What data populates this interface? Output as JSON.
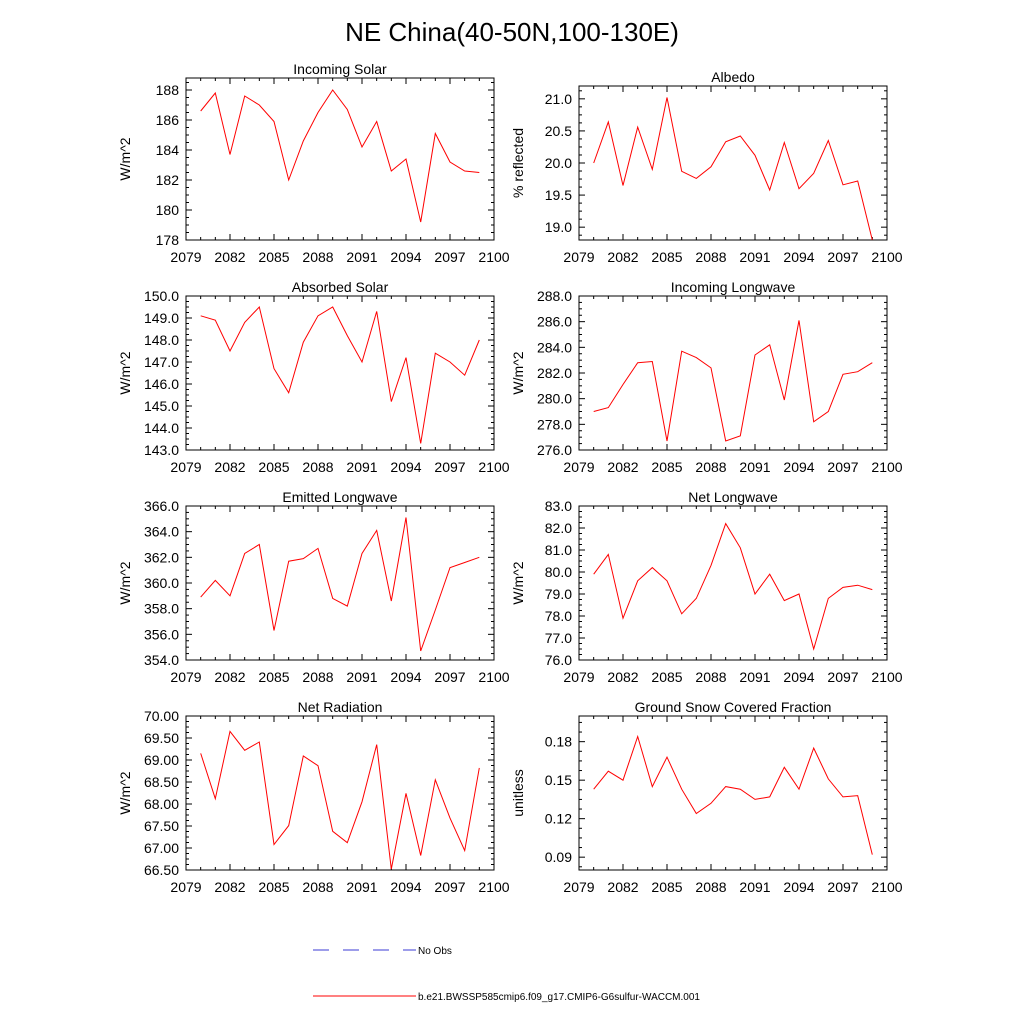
{
  "figure_title": "NE China(40-50N,100-130E)",
  "legend": [
    {
      "label": "No Obs",
      "color": "#3b3bd6",
      "style": "dashed"
    },
    {
      "label": "b.e21.BWSSP585cmip6.f09_g17.CMIP6-G6sulfur-WACCM.001",
      "color": "#ff0000",
      "style": "solid"
    }
  ],
  "chart_data": [
    {
      "type": "line",
      "title": "Incoming Solar",
      "ylabel": "W/m^2",
      "xlim": [
        2079,
        2100
      ],
      "ylim": [
        178,
        188.8
      ],
      "xticks": [
        "2079",
        "2082",
        "2085",
        "2088",
        "2091",
        "2094",
        "2097",
        "2100"
      ],
      "yticks": [
        "178",
        "180",
        "182",
        "184",
        "186",
        "188"
      ],
      "series": [
        {
          "color": "#ff0000",
          "x": [
            2080,
            2081,
            2082,
            2083,
            2084,
            2085,
            2086,
            2087,
            2088,
            2089,
            2090,
            2091,
            2092,
            2093,
            2094,
            2095,
            2096,
            2097,
            2098,
            2099
          ],
          "y": [
            186.6,
            187.8,
            183.7,
            187.6,
            187.0,
            185.9,
            182.0,
            184.6,
            186.5,
            188.0,
            186.7,
            184.2,
            185.9,
            182.6,
            183.4,
            179.2,
            185.1,
            183.2,
            182.6,
            182.5
          ]
        }
      ]
    },
    {
      "type": "line",
      "title": "Albedo",
      "ylabel": "% reflected",
      "xlim": [
        2079,
        2100
      ],
      "ylim": [
        18.8,
        21.2
      ],
      "xticks": [
        "2079",
        "2082",
        "2085",
        "2088",
        "2091",
        "2094",
        "2097",
        "2100"
      ],
      "yticks": [
        "19.0",
        "19.5",
        "20.0",
        "20.5",
        "21.0"
      ],
      "series": [
        {
          "color": "#ff0000",
          "x": [
            2080,
            2081,
            2082,
            2083,
            2084,
            2085,
            2086,
            2087,
            2088,
            2089,
            2090,
            2091,
            2092,
            2093,
            2094,
            2095,
            2096,
            2097,
            2098,
            2099
          ],
          "y": [
            20.0,
            20.64,
            19.65,
            20.56,
            19.9,
            21.02,
            19.87,
            19.76,
            19.94,
            20.33,
            20.42,
            20.12,
            19.58,
            20.32,
            19.6,
            19.84,
            20.35,
            19.66,
            19.72,
            18.8
          ]
        }
      ]
    },
    {
      "type": "line",
      "title": "Absorbed Solar",
      "ylabel": "W/m^2",
      "xlim": [
        2079,
        2100
      ],
      "ylim": [
        143.0,
        150.0
      ],
      "xticks": [
        "2079",
        "2082",
        "2085",
        "2088",
        "2091",
        "2094",
        "2097",
        "2100"
      ],
      "yticks": [
        "143.0",
        "144.0",
        "145.0",
        "146.0",
        "147.0",
        "148.0",
        "149.0",
        "150.0"
      ],
      "series": [
        {
          "color": "#ff0000",
          "x": [
            2080,
            2081,
            2082,
            2083,
            2084,
            2085,
            2086,
            2087,
            2088,
            2089,
            2090,
            2091,
            2092,
            2093,
            2094,
            2095,
            2096,
            2097,
            2098,
            2099
          ],
          "y": [
            149.1,
            148.9,
            147.5,
            148.8,
            149.5,
            146.7,
            145.6,
            147.9,
            149.1,
            149.5,
            148.2,
            147.0,
            149.3,
            145.2,
            147.2,
            143.3,
            147.4,
            147.0,
            146.4,
            148.0
          ]
        }
      ]
    },
    {
      "type": "line",
      "title": "Incoming Longwave",
      "ylabel": "W/m^2",
      "xlim": [
        2079,
        2100
      ],
      "ylim": [
        276.0,
        288.0
      ],
      "xticks": [
        "2079",
        "2082",
        "2085",
        "2088",
        "2091",
        "2094",
        "2097",
        "2100"
      ],
      "yticks": [
        "276.0",
        "278.0",
        "280.0",
        "282.0",
        "284.0",
        "286.0",
        "288.0"
      ],
      "series": [
        {
          "color": "#ff0000",
          "x": [
            2080,
            2081,
            2082,
            2083,
            2084,
            2085,
            2086,
            2087,
            2088,
            2089,
            2090,
            2091,
            2092,
            2093,
            2094,
            2095,
            2096,
            2097,
            2098,
            2099
          ],
          "y": [
            279.0,
            279.3,
            281.1,
            282.8,
            282.9,
            276.7,
            283.7,
            283.2,
            282.4,
            276.7,
            277.1,
            283.4,
            284.2,
            279.9,
            286.1,
            278.2,
            279.0,
            281.9,
            282.1,
            282.8
          ]
        }
      ]
    },
    {
      "type": "line",
      "title": "Emitted Longwave",
      "ylabel": "W/m^2",
      "xlim": [
        2079,
        2100
      ],
      "ylim": [
        354.0,
        366.0
      ],
      "xticks": [
        "2079",
        "2082",
        "2085",
        "2088",
        "2091",
        "2094",
        "2097",
        "2100"
      ],
      "yticks": [
        "354.0",
        "356.0",
        "358.0",
        "360.0",
        "362.0",
        "364.0",
        "366.0"
      ],
      "series": [
        {
          "color": "#ff0000",
          "x": [
            2080,
            2081,
            2082,
            2083,
            2084,
            2085,
            2086,
            2087,
            2088,
            2089,
            2090,
            2091,
            2092,
            2093,
            2094,
            2095,
            2096,
            2097,
            2098,
            2099
          ],
          "y": [
            358.9,
            360.2,
            359.0,
            362.3,
            363.0,
            356.3,
            361.7,
            361.9,
            362.7,
            358.8,
            358.2,
            362.3,
            364.1,
            358.6,
            365.1,
            354.7,
            357.9,
            361.2,
            361.6,
            362.0
          ]
        }
      ]
    },
    {
      "type": "line",
      "title": "Net Longwave",
      "ylabel": "W/m^2",
      "xlim": [
        2079,
        2100
      ],
      "ylim": [
        76.0,
        83.0
      ],
      "xticks": [
        "2079",
        "2082",
        "2085",
        "2088",
        "2091",
        "2094",
        "2097",
        "2100"
      ],
      "yticks": [
        "76.0",
        "77.0",
        "78.0",
        "79.0",
        "80.0",
        "81.0",
        "82.0",
        "83.0"
      ],
      "series": [
        {
          "color": "#ff0000",
          "x": [
            2080,
            2081,
            2082,
            2083,
            2084,
            2085,
            2086,
            2087,
            2088,
            2089,
            2090,
            2091,
            2092,
            2093,
            2094,
            2095,
            2096,
            2097,
            2098,
            2099
          ],
          "y": [
            79.9,
            80.8,
            77.9,
            79.6,
            80.2,
            79.6,
            78.1,
            78.8,
            80.3,
            82.2,
            81.1,
            79.0,
            79.9,
            78.7,
            79.0,
            76.5,
            78.8,
            79.3,
            79.4,
            79.2
          ]
        }
      ]
    },
    {
      "type": "line",
      "title": "Net Radiation",
      "ylabel": "W/m^2",
      "xlim": [
        2079,
        2100
      ],
      "ylim": [
        66.5,
        70.0
      ],
      "xticks": [
        "2079",
        "2082",
        "2085",
        "2088",
        "2091",
        "2094",
        "2097",
        "2100"
      ],
      "yticks": [
        "66.50",
        "67.00",
        "67.50",
        "68.00",
        "68.50",
        "69.00",
        "69.50",
        "70.00"
      ],
      "series": [
        {
          "color": "#ff0000",
          "x": [
            2080,
            2081,
            2082,
            2083,
            2084,
            2085,
            2086,
            2087,
            2088,
            2089,
            2090,
            2091,
            2092,
            2093,
            2094,
            2095,
            2096,
            2097,
            2098,
            2099
          ],
          "y": [
            69.15,
            68.12,
            69.65,
            69.22,
            69.41,
            67.08,
            67.51,
            69.09,
            68.87,
            67.38,
            67.12,
            68.05,
            69.35,
            66.52,
            68.24,
            66.83,
            68.55,
            67.68,
            66.94,
            68.82
          ]
        }
      ]
    },
    {
      "type": "line",
      "title": "Ground Snow Covered Fraction",
      "ylabel": "unitless",
      "xlim": [
        2079,
        2100
      ],
      "ylim": [
        0.08,
        0.2
      ],
      "xticks": [
        "2079",
        "2082",
        "2085",
        "2088",
        "2091",
        "2094",
        "2097",
        "2100"
      ],
      "yticks": [
        "0.09",
        "0.12",
        "0.15",
        "0.18"
      ],
      "series": [
        {
          "color": "#ff0000",
          "x": [
            2080,
            2081,
            2082,
            2083,
            2084,
            2085,
            2086,
            2087,
            2088,
            2089,
            2090,
            2091,
            2092,
            2093,
            2094,
            2095,
            2096,
            2097,
            2098,
            2099
          ],
          "y": [
            0.143,
            0.157,
            0.15,
            0.184,
            0.145,
            0.168,
            0.143,
            0.124,
            0.132,
            0.145,
            0.143,
            0.135,
            0.137,
            0.16,
            0.143,
            0.175,
            0.151,
            0.137,
            0.138,
            0.092
          ]
        }
      ]
    }
  ]
}
